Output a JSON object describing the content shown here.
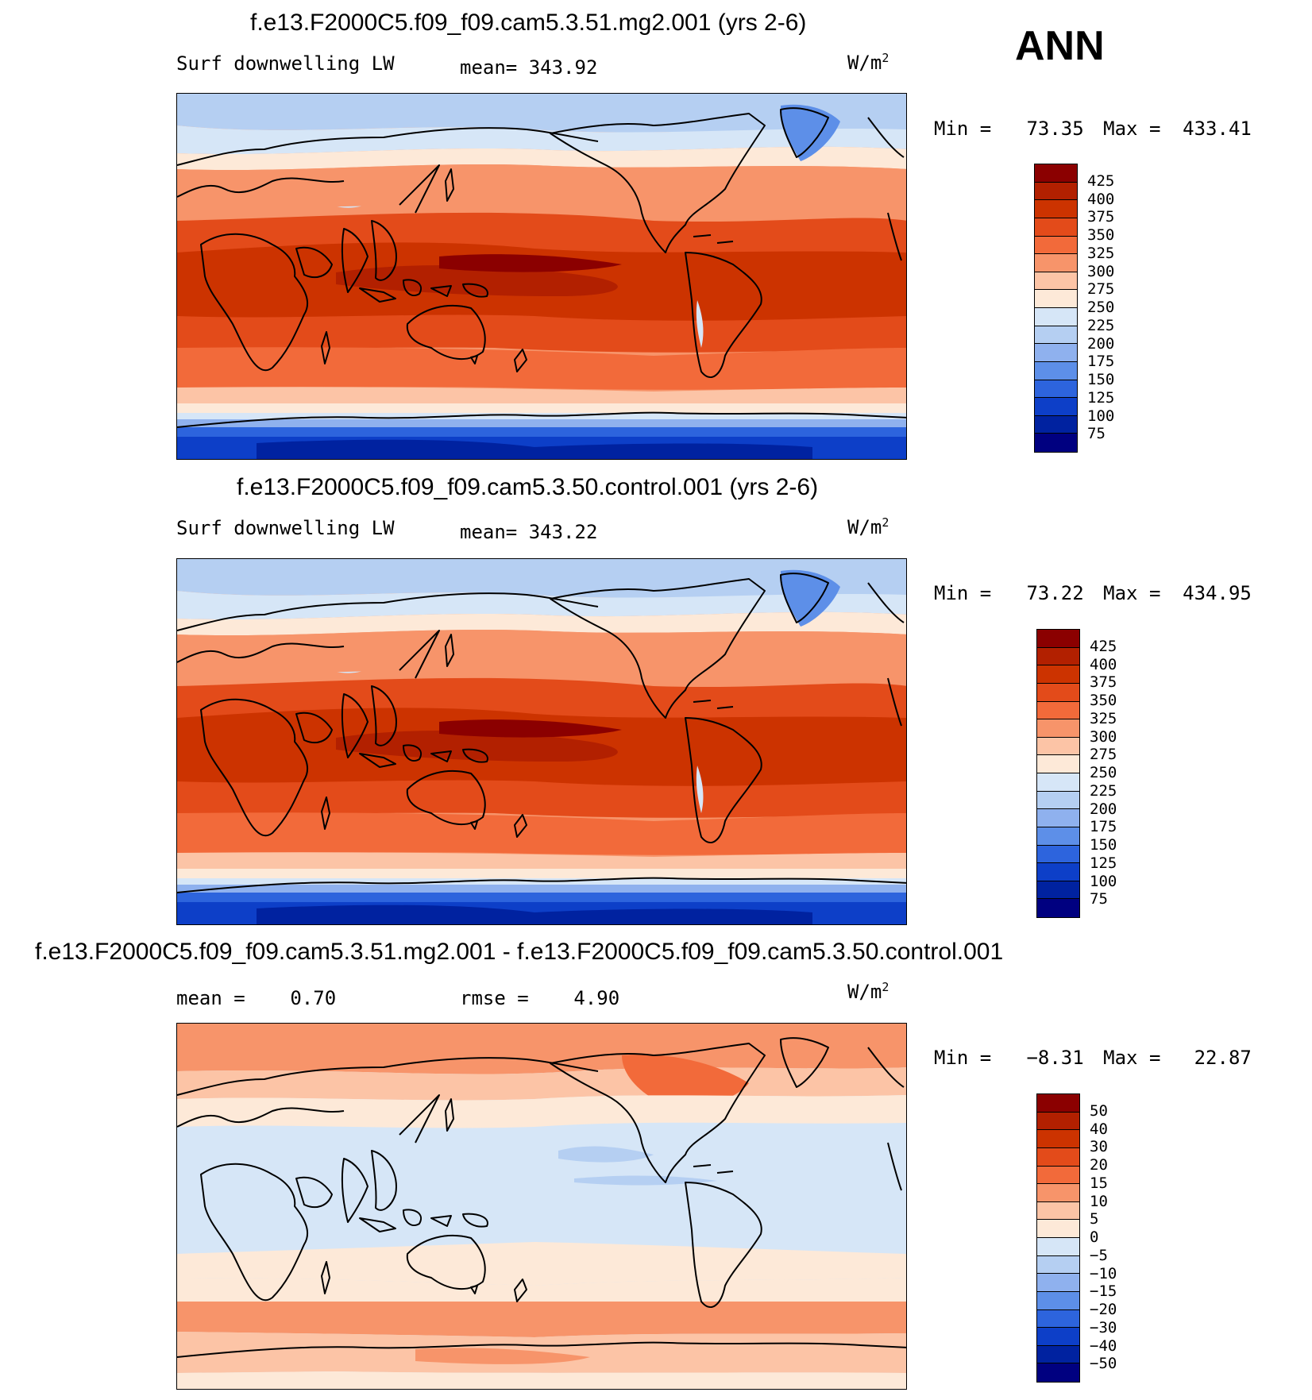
{
  "season": "ANN",
  "unit_main": "W/m",
  "unit_sup": "2",
  "panels": [
    {
      "title": "f.e13.F2000C5.f09_f09.cam5.3.51.mg2.001 (yrs 2-6)",
      "variable": "Surf downwelling LW",
      "stat1_label": "mean=",
      "stat1_value": "343.92",
      "minmax_label_min": "Min =",
      "min_value": "73.35",
      "minmax_label_max": "Max =",
      "max_value": "433.41",
      "scale": "abs"
    },
    {
      "title": "f.e13.F2000C5.f09_f09.cam5.3.50.control.001 (yrs 2-6)",
      "variable": "Surf downwelling LW",
      "stat1_label": "mean=",
      "stat1_value": "343.22",
      "minmax_label_min": "Min =",
      "min_value": "73.22",
      "minmax_label_max": "Max =",
      "max_value": "434.95",
      "scale": "abs"
    },
    {
      "title": "f.e13.F2000C5.f09_f09.cam5.3.51.mg2.001 - f.e13.F2000C5.f09_f09.cam5.3.50.control.001",
      "stat1_label": "mean =",
      "stat1_value": "0.70",
      "stat2_label": "rmse =",
      "stat2_value": "4.90",
      "minmax_label_min": "Min =",
      "min_value": "−8.31",
      "minmax_label_max": "Max =",
      "max_value": "22.87",
      "scale": "diff"
    }
  ],
  "colorbar_abs": {
    "labels": [
      "425",
      "400",
      "375",
      "350",
      "325",
      "300",
      "275",
      "250",
      "225",
      "200",
      "175",
      "150",
      "125",
      "100",
      "75"
    ],
    "colors": [
      "#8b0000",
      "#b22000",
      "#cc3300",
      "#e34b1a",
      "#f26a3a",
      "#f7946a",
      "#fcc4a6",
      "#fde9d8",
      "#d6e6f7",
      "#b5cff2",
      "#8fb1ee",
      "#5d8fe8",
      "#2d64dd",
      "#0d3fc8",
      "#0022a0",
      "#000080"
    ]
  },
  "colorbar_diff": {
    "labels": [
      "50",
      "40",
      "30",
      "20",
      "15",
      "10",
      "5",
      "0",
      "−5",
      "−10",
      "−15",
      "−20",
      "−30",
      "−40",
      "−50"
    ],
    "colors": [
      "#8b0000",
      "#b22000",
      "#cc3300",
      "#e34b1a",
      "#f26a3a",
      "#f7946a",
      "#fcc4a6",
      "#fde9d8",
      "#d6e6f7",
      "#b5cff2",
      "#8fb1ee",
      "#5d8fe8",
      "#2d64dd",
      "#0d3fc8",
      "#0022a0",
      "#000080"
    ]
  }
}
